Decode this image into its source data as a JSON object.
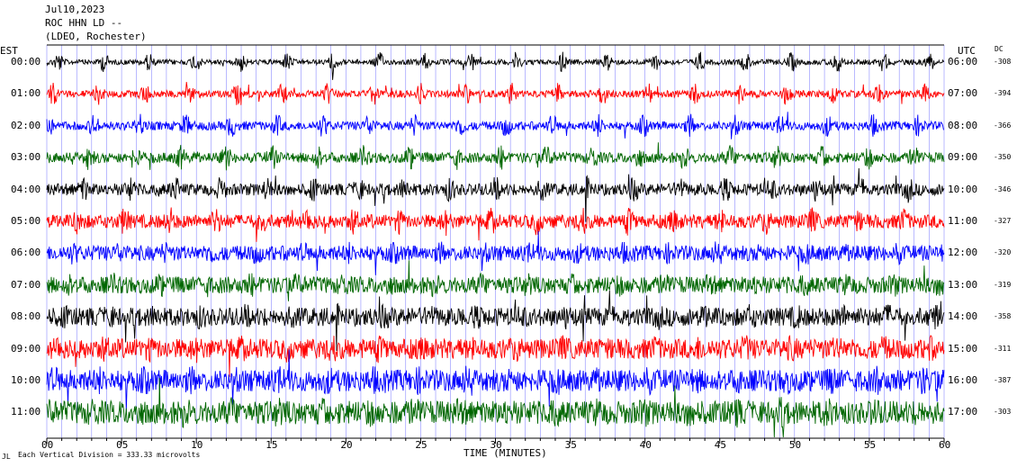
{
  "header": {
    "date": "Jul10,2023",
    "station": "ROC HHN LD --",
    "location": "(LDEO, Rochester)"
  },
  "labels": {
    "left_timezone": "EST",
    "right_timezone": "UTC",
    "dc_header": "DC",
    "x_axis_title": "TIME (MINUTES)",
    "footer_note": "Each Vertical Division = 333.33 microvolts",
    "footer_mark": "JL"
  },
  "colors": {
    "trace_cycle": [
      "#000000",
      "#ff0000",
      "#0000ff",
      "#006600"
    ],
    "axis": "#000000",
    "gridline": "#0000ff"
  },
  "chart_data": {
    "type": "line",
    "title": "",
    "xlabel": "TIME (MINUTES)",
    "xlim": [
      0,
      60
    ],
    "x_ticks": [
      "00",
      "05",
      "10",
      "15",
      "20",
      "25",
      "30",
      "35",
      "40",
      "45",
      "50",
      "55",
      "60"
    ],
    "grid": "vertical lines every minute",
    "series": [
      {
        "est": "00:00",
        "utc": "06:00",
        "dc": "-308",
        "color": "#000000"
      },
      {
        "est": "01:00",
        "utc": "07:00",
        "dc": "-394",
        "color": "#ff0000"
      },
      {
        "est": "02:00",
        "utc": "08:00",
        "dc": "-366",
        "color": "#0000ff"
      },
      {
        "est": "03:00",
        "utc": "09:00",
        "dc": "-350",
        "color": "#006600"
      },
      {
        "est": "04:00",
        "utc": "10:00",
        "dc": "-346",
        "color": "#000000"
      },
      {
        "est": "05:00",
        "utc": "11:00",
        "dc": "-327",
        "color": "#ff0000"
      },
      {
        "est": "06:00",
        "utc": "12:00",
        "dc": "-320",
        "color": "#0000ff"
      },
      {
        "est": "07:00",
        "utc": "13:00",
        "dc": "-319",
        "color": "#006600"
      },
      {
        "est": "08:00",
        "utc": "14:00",
        "dc": "-358",
        "color": "#000000"
      },
      {
        "est": "09:00",
        "utc": "15:00",
        "dc": "-311",
        "color": "#ff0000"
      },
      {
        "est": "10:00",
        "utc": "16:00",
        "dc": "-387",
        "color": "#0000ff"
      },
      {
        "est": "11:00",
        "utc": "17:00",
        "dc": "-303",
        "color": "#006600"
      }
    ]
  }
}
